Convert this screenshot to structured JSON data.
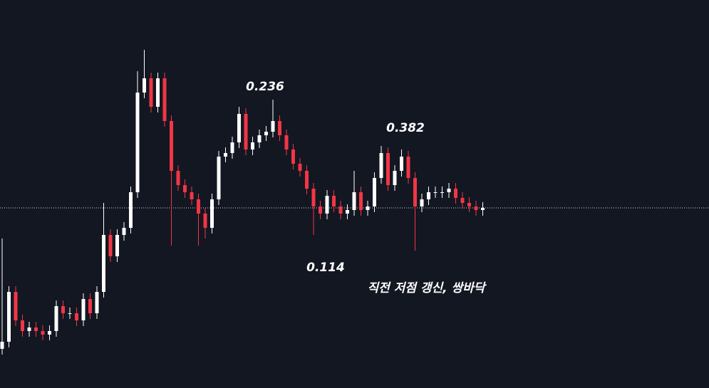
{
  "chart_data": {
    "type": "candlestick",
    "ylim": [
      0,
      545
    ],
    "up_color": "#ffffff",
    "down_color": "#f23645",
    "reference_line": 253,
    "reference_line_color": "#d1d4dc",
    "open": [
      55,
      65,
      135,
      95,
      80,
      85,
      80,
      75,
      80,
      115,
      105,
      105,
      95,
      125,
      105,
      135,
      215,
      185,
      215,
      225,
      275,
      415,
      435,
      395,
      435,
      375,
      305,
      285,
      275,
      265,
      245,
      225,
      265,
      325,
      330,
      345,
      385,
      335,
      345,
      355,
      360,
      375,
      355,
      335,
      315,
      305,
      280,
      255,
      245,
      270,
      255,
      245,
      250,
      275,
      250,
      255,
      295,
      330,
      285,
      305,
      325,
      295,
      255,
      265,
      275,
      275,
      275,
      280,
      267,
      260,
      255,
      250
    ],
    "high": [
      210,
      143,
      143,
      103,
      93,
      93,
      88,
      88,
      123,
      123,
      113,
      113,
      133,
      133,
      143,
      260,
      223,
      223,
      233,
      283,
      445,
      475,
      443,
      443,
      443,
      383,
      313,
      293,
      283,
      273,
      253,
      273,
      333,
      338,
      353,
      395,
      393,
      353,
      363,
      368,
      405,
      383,
      363,
      343,
      323,
      313,
      288,
      263,
      278,
      278,
      263,
      258,
      305,
      283,
      263,
      303,
      340,
      338,
      313,
      335,
      333,
      303,
      273,
      283,
      283,
      283,
      288,
      288,
      275,
      268,
      263,
      261
    ],
    "low": [
      47,
      57,
      87,
      72,
      72,
      72,
      67,
      67,
      72,
      97,
      97,
      87,
      87,
      97,
      97,
      127,
      177,
      177,
      207,
      217,
      267,
      407,
      387,
      387,
      367,
      200,
      277,
      267,
      257,
      200,
      210,
      217,
      257,
      317,
      322,
      337,
      327,
      327,
      337,
      347,
      352,
      347,
      327,
      307,
      297,
      272,
      215,
      237,
      237,
      247,
      237,
      237,
      242,
      242,
      242,
      247,
      287,
      277,
      277,
      297,
      287,
      193,
      247,
      257,
      267,
      267,
      267,
      259,
      252,
      247,
      242,
      242
    ],
    "close": [
      65,
      135,
      95,
      80,
      85,
      80,
      75,
      80,
      115,
      105,
      105,
      95,
      125,
      105,
      135,
      215,
      185,
      215,
      225,
      275,
      415,
      435,
      395,
      435,
      375,
      305,
      285,
      275,
      265,
      245,
      225,
      265,
      325,
      330,
      345,
      385,
      335,
      345,
      355,
      360,
      375,
      355,
      335,
      315,
      305,
      280,
      255,
      245,
      270,
      255,
      245,
      250,
      275,
      250,
      255,
      295,
      330,
      285,
      305,
      325,
      295,
      255,
      265,
      275,
      275,
      275,
      280,
      267,
      260,
      255,
      250,
      253
    ],
    "annotations": [
      {
        "text": "0.236"
      },
      {
        "text": "0.382"
      },
      {
        "text": "0.114"
      },
      {
        "text": "직전 저점 갱신, 쌍바닥"
      }
    ]
  }
}
